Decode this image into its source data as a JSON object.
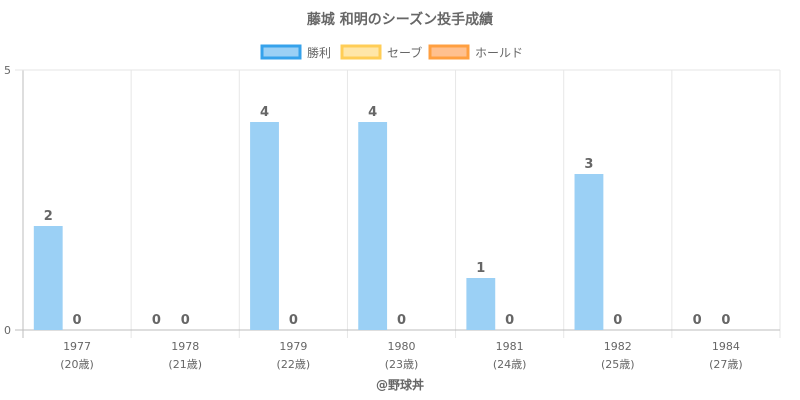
{
  "chart_data": {
    "type": "bar",
    "title": "藤城 和明のシーズン投手成績",
    "categories": [
      "1977",
      "1978",
      "1979",
      "1980",
      "1981",
      "1982",
      "1984"
    ],
    "category_sublabels": [
      "(20歳)",
      "(21歳)",
      "(22歳)",
      "(23歳)",
      "(24歳)",
      "(25歳)",
      "(27歳)"
    ],
    "series": [
      {
        "name": "勝利",
        "color": "#9bd0f5",
        "border": "#36a2eb",
        "values": [
          2,
          0,
          4,
          4,
          1,
          3,
          0
        ]
      },
      {
        "name": "セーブ",
        "color": "#ffe6a8",
        "border": "#ffcd56",
        "values": [
          0,
          0,
          0,
          0,
          0,
          0,
          0
        ]
      },
      {
        "name": "ホールド",
        "color": "#ffc08f",
        "border": "#ff9f40",
        "values": [
          0,
          0,
          0,
          0,
          0,
          0,
          0
        ]
      }
    ],
    "visible_data_labels": [
      {
        "series": 0,
        "values": [
          2,
          0,
          4,
          4,
          1,
          3,
          0
        ]
      },
      {
        "series": 1,
        "values": [
          0,
          0,
          0,
          0,
          0,
          0,
          0
        ]
      }
    ],
    "ylim": [
      0,
      5
    ],
    "y_ticks": [
      0,
      5
    ],
    "grid": true,
    "legend_position": "top"
  },
  "credit": "@野球丼"
}
